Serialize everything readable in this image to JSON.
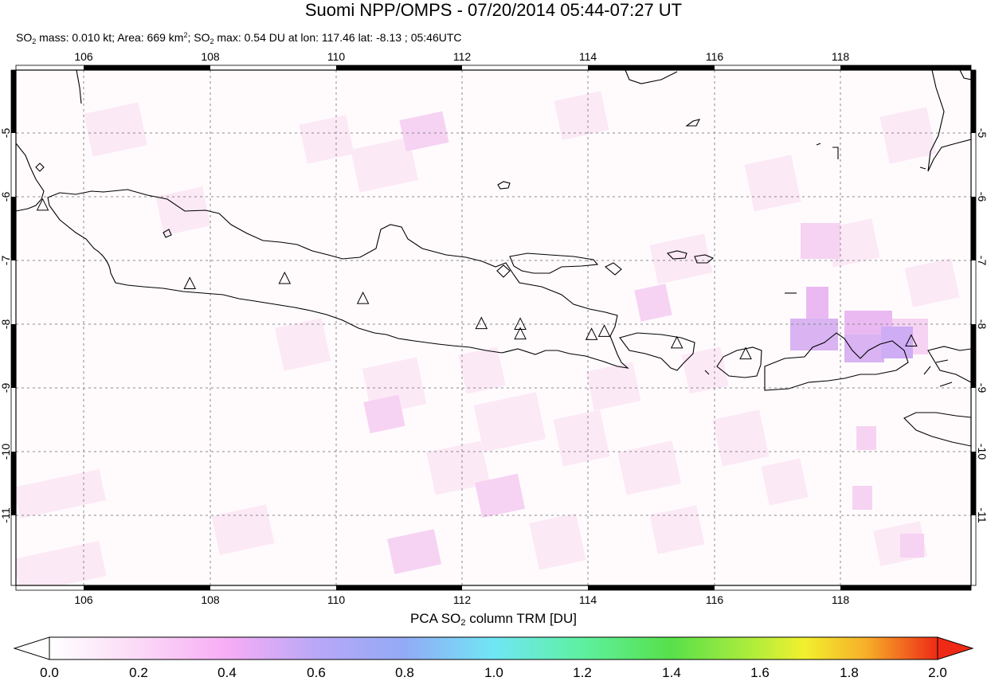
{
  "header": {
    "title": "Suomi NPP/OMPS - 07/20/2014 05:44-07:27 UT",
    "subtitle_mass_prefix": "SO",
    "subtitle_mass": " mass: 0.010 kt; Area: 669 km",
    "subtitle_area_sup": "2",
    "subtitle_max_prefix": "; SO",
    "subtitle_max": " max: 0.54 DU at lon: 117.46 lat: -8.13 ; 05:46UTC",
    "sub2": "2"
  },
  "map": {
    "lon_range": [
      105,
      120
    ],
    "lat_range": [
      -12,
      -4
    ],
    "lon_ticks": [
      "106",
      "108",
      "110",
      "112",
      "114",
      "116",
      "118"
    ],
    "lat_ticks": [
      "-5",
      "-6",
      "-7",
      "-8",
      "-9",
      "-10",
      "-11"
    ],
    "volcanoes": [
      {
        "lon": 105.42,
        "lat": -6.1
      },
      {
        "lon": 107.73,
        "lat": -7.32
      },
      {
        "lon": 109.22,
        "lat": -7.24
      },
      {
        "lon": 110.45,
        "lat": -7.55
      },
      {
        "lon": 112.31,
        "lat": -7.94
      },
      {
        "lon": 112.92,
        "lat": -7.95
      },
      {
        "lon": 112.92,
        "lat": -8.1
      },
      {
        "lon": 114.04,
        "lat": -8.11
      },
      {
        "lon": 114.24,
        "lat": -8.06
      },
      {
        "lon": 115.38,
        "lat": -8.24
      },
      {
        "lon": 116.46,
        "lat": -8.41
      },
      {
        "lon": 119.06,
        "lat": -8.21
      }
    ],
    "so2_max_value": 0.54,
    "so2_max_location": {
      "lon": 117.46,
      "lat": -8.13
    }
  },
  "colorbar": {
    "title_prefix": "PCA SO",
    "title_sub": "2",
    "title_suffix": " column TRM [DU]",
    "labels": [
      "0.0",
      "0.2",
      "0.4",
      "0.6",
      "0.8",
      "1.0",
      "1.2",
      "1.4",
      "1.6",
      "1.8",
      "2.0"
    ],
    "colors": [
      "#ffffff",
      "#fbd9f6",
      "#f7adf5",
      "#c9a8f7",
      "#9aa4f5",
      "#7fc6f7",
      "#6ff2f2",
      "#5ff07a",
      "#5ee04a",
      "#b9ef3c",
      "#f5f02d",
      "#f7b52a",
      "#f56422",
      "#ee2a16"
    ]
  }
}
